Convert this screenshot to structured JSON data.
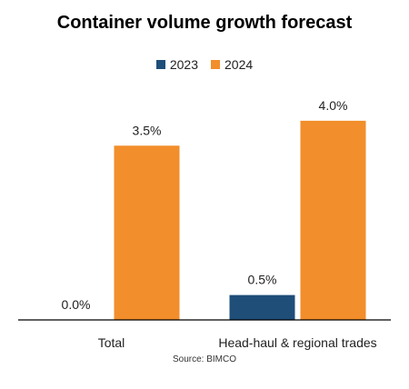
{
  "chart_data": {
    "type": "bar",
    "title": "Container volume growth forecast",
    "categories": [
      "Total",
      "Head-haul & regional trades"
    ],
    "series": [
      {
        "name": "2023",
        "values": [
          0.0,
          0.5
        ],
        "labels": [
          "0.0%",
          "0.5%"
        ],
        "color": "#1f4e79"
      },
      {
        "name": "2024",
        "values": [
          3.5,
          4.0
        ],
        "labels": [
          "3.5%",
          "4.0%"
        ],
        "color": "#f28e2b"
      }
    ],
    "ylim": [
      0,
      4.6
    ],
    "grid": false,
    "legend_position": "top"
  },
  "source": "Source: BIMCO"
}
